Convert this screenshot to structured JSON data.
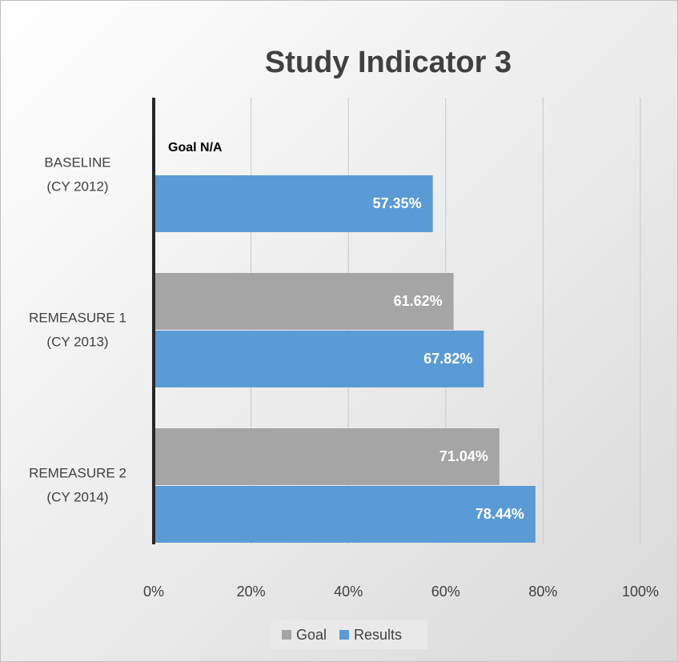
{
  "chart_data": {
    "type": "barh",
    "title": "Study Indicator 3",
    "annotation": "Goal N/A",
    "categories": [
      [
        "BASELINE",
        "(CY 2012)"
      ],
      [
        "REMEASURE  1",
        "(CY 2013)"
      ],
      [
        "REMEASURE  2",
        "(CY 2014)"
      ]
    ],
    "series": [
      {
        "name": "Goal",
        "color": "#a5a5a5",
        "values": [
          null,
          61.62,
          71.04
        ],
        "value_labels": [
          null,
          "61.62%",
          "71.04%"
        ]
      },
      {
        "name": "Results",
        "color": "#5b9bd5",
        "values": [
          57.35,
          67.82,
          78.44
        ],
        "value_labels": [
          "57.35%",
          "67.82%",
          "78.44%"
        ]
      }
    ],
    "xlim": [
      0,
      100
    ],
    "xticks": [
      {
        "value": 0,
        "label": "0%"
      },
      {
        "value": 20,
        "label": "20%"
      },
      {
        "value": 40,
        "label": "40%"
      },
      {
        "value": 60,
        "label": "60%"
      },
      {
        "value": 80,
        "label": "80%"
      },
      {
        "value": 100,
        "label": "100%"
      }
    ],
    "grid": true
  }
}
